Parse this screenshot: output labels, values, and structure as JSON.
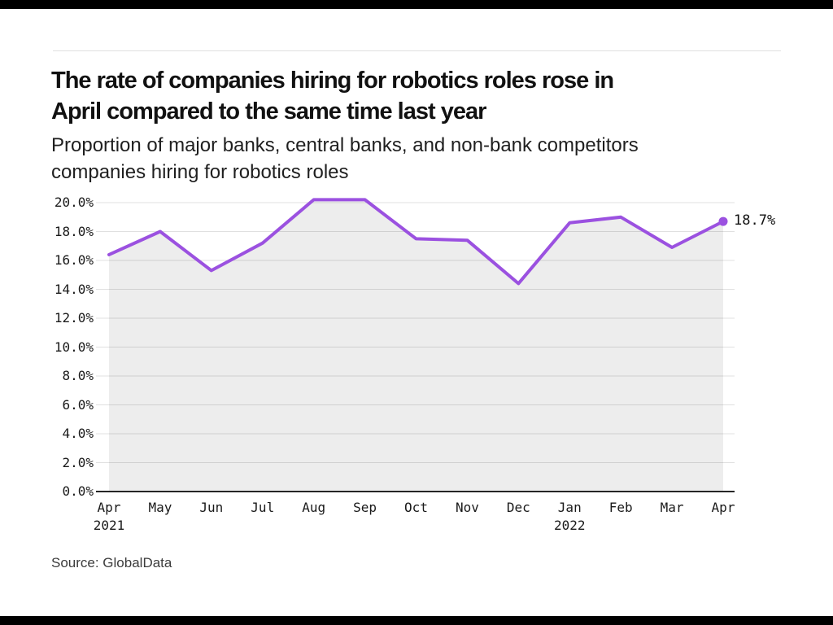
{
  "header": {
    "title_lines": [
      "The rate of companies hiring for robotics roles rose in",
      "April compared to the same time last year"
    ],
    "subtitle_lines": [
      "Proportion of major banks, central banks, and non-bank competitors",
      "companies hiring for robotics roles"
    ]
  },
  "footer": {
    "source": "Source: GlobalData"
  },
  "chart_data": {
    "type": "area",
    "title": "The rate of companies hiring for robotics roles rose in April compared to the same time last year",
    "subtitle": "Proportion of major banks, central banks, and non-bank competitors companies hiring for robotics roles",
    "source": "Source: GlobalData",
    "categories": [
      "Apr 2021",
      "May",
      "Jun",
      "Jul",
      "Aug",
      "Sep",
      "Oct",
      "Nov",
      "Dec",
      "Jan 2022",
      "Feb",
      "Mar",
      "Apr"
    ],
    "x_ticks": [
      {
        "month": "Apr",
        "year": "2021"
      },
      {
        "month": "May"
      },
      {
        "month": "Jun"
      },
      {
        "month": "Jul"
      },
      {
        "month": "Aug"
      },
      {
        "month": "Sep"
      },
      {
        "month": "Oct"
      },
      {
        "month": "Nov"
      },
      {
        "month": "Dec"
      },
      {
        "month": "Jan",
        "year": "2022"
      },
      {
        "month": "Feb"
      },
      {
        "month": "Mar"
      },
      {
        "month": "Apr"
      }
    ],
    "values": [
      16.4,
      18.0,
      15.3,
      17.2,
      20.2,
      20.2,
      17.5,
      17.4,
      14.4,
      18.6,
      19.0,
      16.9,
      18.7
    ],
    "unit": "%",
    "end_label": "18.7%",
    "ylim": [
      0,
      20
    ],
    "y_tick_step": 2,
    "y_tick_labels": [
      "0.0%",
      "2.0%",
      "4.0%",
      "6.0%",
      "8.0%",
      "10.0%",
      "12.0%",
      "14.0%",
      "16.0%",
      "18.0%",
      "20.0%"
    ],
    "grid": true,
    "legend": "none",
    "colors": {
      "line": "#9b51e0",
      "marker": "#9b51e0",
      "area_fill": "rgba(0,0,0,0.07)",
      "grid_line": "#e0e0e0",
      "axis_line": "#262626",
      "tick_text": "#1a1a1a"
    }
  }
}
